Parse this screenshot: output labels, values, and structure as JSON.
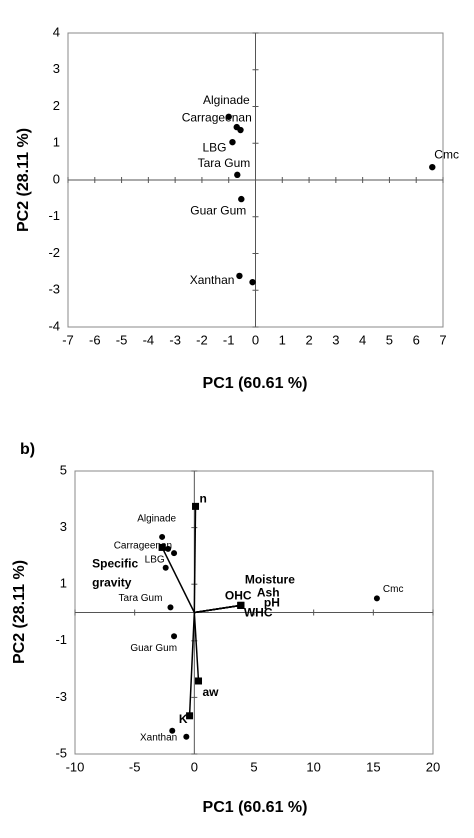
{
  "chart_data": [
    {
      "type": "scatter",
      "xlabel": "PC1 (60.61 %)",
      "ylabel": "PC2 (28.11 %)",
      "xlim": [
        -7,
        7
      ],
      "xticks": [
        -7,
        -6,
        -5,
        -4,
        -3,
        -2,
        -1,
        0,
        1,
        2,
        3,
        4,
        5,
        6,
        7
      ],
      "ylim": [
        -4,
        4
      ],
      "yticks": [
        -4,
        -3,
        -2,
        -1,
        0,
        1,
        2,
        3,
        4
      ],
      "color": "#000000",
      "x": [
        -1.0,
        -0.7,
        -0.56,
        -0.86,
        -0.68,
        -0.53,
        -0.6,
        -0.11,
        6.6
      ],
      "values": [
        1.72,
        1.44,
        1.36,
        1.03,
        0.14,
        -0.52,
        -2.61,
        -2.78,
        0.35
      ],
      "labels": [
        "Alginade",
        "Carrageenan",
        null,
        "LBG",
        "Tara Gum",
        "Guar Gum",
        "Xanthan",
        null,
        "Cmc"
      ]
    },
    {
      "type": "biplot",
      "panel_label": "b)",
      "xlabel": "PC1 (60.61 %)",
      "ylabel": "PC2 (28.11 %)",
      "xlim": [
        -10,
        20
      ],
      "xticks": [
        -10,
        -5,
        0,
        5,
        10,
        15,
        20
      ],
      "ylim": [
        -5,
        5
      ],
      "yticks": [
        -5,
        -3,
        -1,
        1,
        3,
        5
      ],
      "color": "#000000",
      "scores": {
        "x": [
          -2.7,
          -2.2,
          -1.7,
          -2.4,
          -2.0,
          -1.7,
          -1.85,
          -0.67,
          15.3
        ],
        "values": [
          2.67,
          2.25,
          2.1,
          1.58,
          0.18,
          -0.84,
          -4.18,
          -4.39,
          0.5
        ],
        "labels": [
          "Alginade",
          "Carrageenan",
          null,
          "LBG",
          "Tara Gum",
          "Guar Gum",
          "Xanthan",
          null,
          "Cmc"
        ]
      },
      "loadings": {
        "x": [
          0.1,
          -2.7,
          3.9,
          3.9,
          3.9,
          3.9,
          3.9,
          0.35,
          -0.4
        ],
        "values": [
          3.75,
          2.3,
          0.25,
          0.25,
          0.25,
          0.25,
          0.25,
          -2.42,
          -3.65
        ],
        "labels": [
          "n",
          [
            "Specific",
            "gravity"
          ],
          "Moisture",
          "OHC",
          "Ash",
          "pH",
          "WHC",
          "aw",
          "K"
        ]
      }
    }
  ]
}
